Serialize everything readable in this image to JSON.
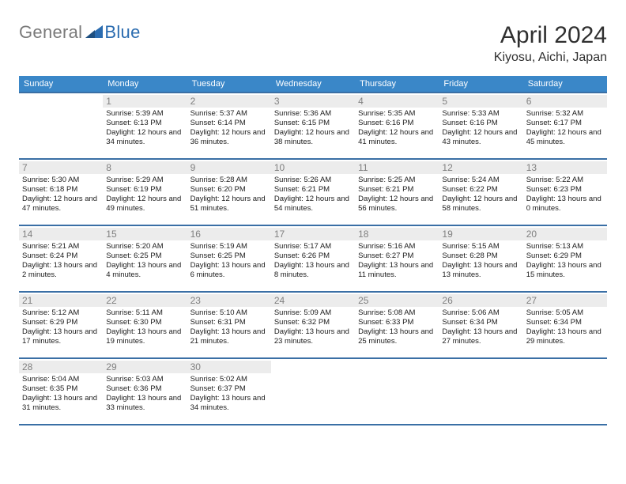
{
  "brand": {
    "part1": "General",
    "part2": "Blue"
  },
  "header": {
    "month_title": "April 2024",
    "location": "Kiyosu, Aichi, Japan"
  },
  "theme": {
    "header_bg": "#3a87c8",
    "header_text": "#ffffff",
    "line_color": "#3a6fa5",
    "date_strip_bg": "#ececec",
    "date_text": "#808080",
    "body_text": "#202020",
    "page_bg": "#ffffff",
    "brand_gray": "#7a7a7a",
    "brand_blue": "#2b6cb0",
    "month_title_fontsize": 30,
    "location_fontsize": 16,
    "dow_fontsize": 11,
    "date_fontsize": 12,
    "cell_fontsize": 9.5
  },
  "days_of_week": [
    "Sunday",
    "Monday",
    "Tuesday",
    "Wednesday",
    "Thursday",
    "Friday",
    "Saturday"
  ],
  "weeks": [
    [
      null,
      {
        "d": "1",
        "sr": "5:39 AM",
        "ss": "6:13 PM",
        "dl": "12 hours and 34 minutes."
      },
      {
        "d": "2",
        "sr": "5:37 AM",
        "ss": "6:14 PM",
        "dl": "12 hours and 36 minutes."
      },
      {
        "d": "3",
        "sr": "5:36 AM",
        "ss": "6:15 PM",
        "dl": "12 hours and 38 minutes."
      },
      {
        "d": "4",
        "sr": "5:35 AM",
        "ss": "6:16 PM",
        "dl": "12 hours and 41 minutes."
      },
      {
        "d": "5",
        "sr": "5:33 AM",
        "ss": "6:16 PM",
        "dl": "12 hours and 43 minutes."
      },
      {
        "d": "6",
        "sr": "5:32 AM",
        "ss": "6:17 PM",
        "dl": "12 hours and 45 minutes."
      }
    ],
    [
      {
        "d": "7",
        "sr": "5:30 AM",
        "ss": "6:18 PM",
        "dl": "12 hours and 47 minutes."
      },
      {
        "d": "8",
        "sr": "5:29 AM",
        "ss": "6:19 PM",
        "dl": "12 hours and 49 minutes."
      },
      {
        "d": "9",
        "sr": "5:28 AM",
        "ss": "6:20 PM",
        "dl": "12 hours and 51 minutes."
      },
      {
        "d": "10",
        "sr": "5:26 AM",
        "ss": "6:21 PM",
        "dl": "12 hours and 54 minutes."
      },
      {
        "d": "11",
        "sr": "5:25 AM",
        "ss": "6:21 PM",
        "dl": "12 hours and 56 minutes."
      },
      {
        "d": "12",
        "sr": "5:24 AM",
        "ss": "6:22 PM",
        "dl": "12 hours and 58 minutes."
      },
      {
        "d": "13",
        "sr": "5:22 AM",
        "ss": "6:23 PM",
        "dl": "13 hours and 0 minutes."
      }
    ],
    [
      {
        "d": "14",
        "sr": "5:21 AM",
        "ss": "6:24 PM",
        "dl": "13 hours and 2 minutes."
      },
      {
        "d": "15",
        "sr": "5:20 AM",
        "ss": "6:25 PM",
        "dl": "13 hours and 4 minutes."
      },
      {
        "d": "16",
        "sr": "5:19 AM",
        "ss": "6:25 PM",
        "dl": "13 hours and 6 minutes."
      },
      {
        "d": "17",
        "sr": "5:17 AM",
        "ss": "6:26 PM",
        "dl": "13 hours and 8 minutes."
      },
      {
        "d": "18",
        "sr": "5:16 AM",
        "ss": "6:27 PM",
        "dl": "13 hours and 11 minutes."
      },
      {
        "d": "19",
        "sr": "5:15 AM",
        "ss": "6:28 PM",
        "dl": "13 hours and 13 minutes."
      },
      {
        "d": "20",
        "sr": "5:13 AM",
        "ss": "6:29 PM",
        "dl": "13 hours and 15 minutes."
      }
    ],
    [
      {
        "d": "21",
        "sr": "5:12 AM",
        "ss": "6:29 PM",
        "dl": "13 hours and 17 minutes."
      },
      {
        "d": "22",
        "sr": "5:11 AM",
        "ss": "6:30 PM",
        "dl": "13 hours and 19 minutes."
      },
      {
        "d": "23",
        "sr": "5:10 AM",
        "ss": "6:31 PM",
        "dl": "13 hours and 21 minutes."
      },
      {
        "d": "24",
        "sr": "5:09 AM",
        "ss": "6:32 PM",
        "dl": "13 hours and 23 minutes."
      },
      {
        "d": "25",
        "sr": "5:08 AM",
        "ss": "6:33 PM",
        "dl": "13 hours and 25 minutes."
      },
      {
        "d": "26",
        "sr": "5:06 AM",
        "ss": "6:34 PM",
        "dl": "13 hours and 27 minutes."
      },
      {
        "d": "27",
        "sr": "5:05 AM",
        "ss": "6:34 PM",
        "dl": "13 hours and 29 minutes."
      }
    ],
    [
      {
        "d": "28",
        "sr": "5:04 AM",
        "ss": "6:35 PM",
        "dl": "13 hours and 31 minutes."
      },
      {
        "d": "29",
        "sr": "5:03 AM",
        "ss": "6:36 PM",
        "dl": "13 hours and 33 minutes."
      },
      {
        "d": "30",
        "sr": "5:02 AM",
        "ss": "6:37 PM",
        "dl": "13 hours and 34 minutes."
      },
      null,
      null,
      null,
      null
    ]
  ],
  "labels": {
    "sunrise": "Sunrise:",
    "sunset": "Sunset:",
    "daylight": "Daylight:"
  }
}
